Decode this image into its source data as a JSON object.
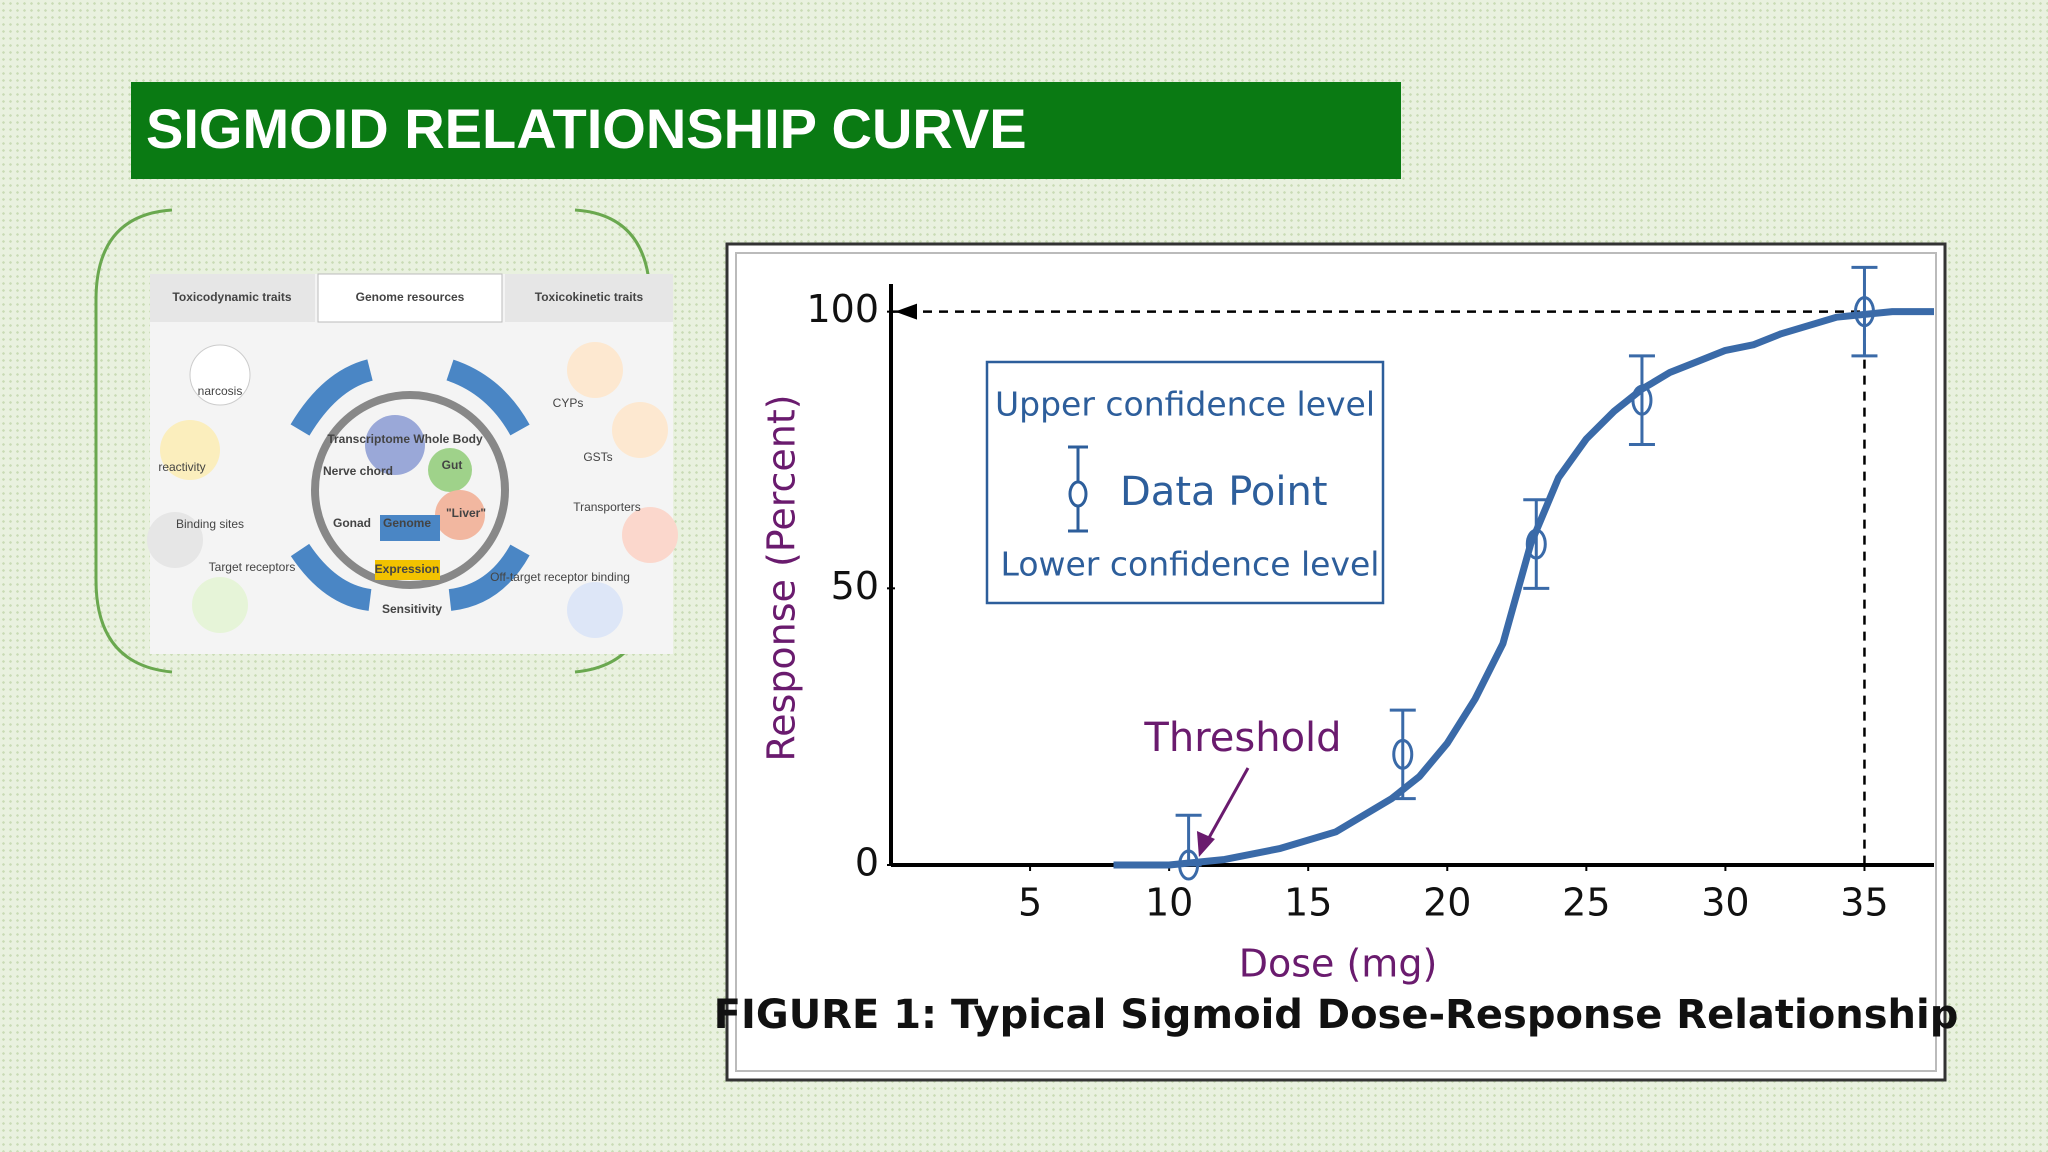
{
  "header": {
    "title": "SIGMOID RELATIONSHIP CURVE"
  },
  "figure": {
    "columns": [
      "Toxicodynamic traits",
      "Genome resources",
      "Toxicokinetic traits"
    ],
    "labels": [
      "narcosis",
      "reactivity",
      "Binding sites",
      "Target receptors",
      "CYPs",
      "GSTs",
      "Transporters",
      "Off-target receptor binding",
      "Transcriptome Whole Body",
      "Nerve chord",
      "Gut",
      "Gonad",
      "Genome",
      "\"Liver\"",
      "Expression",
      "Sensitivity"
    ]
  },
  "chart_data": {
    "type": "line",
    "title": "FIGURE 1: Typical Sigmoid Dose-Response Relationship",
    "x_label": "Dose (mg)",
    "y_label": "Response (Percent)",
    "xlim": [
      0,
      37.5
    ],
    "ylim": [
      0,
      105
    ],
    "xticks": [
      5,
      10,
      15,
      20,
      25,
      30,
      35
    ],
    "yticks": [
      0,
      50,
      100
    ],
    "curve": {
      "color": "#3a6aa8",
      "x": [
        8,
        10,
        12,
        14,
        16,
        18,
        19,
        20,
        21,
        22,
        23,
        24,
        25,
        26,
        27,
        28,
        29,
        30,
        31,
        32,
        34,
        36,
        37.5
      ],
      "values": [
        0,
        0,
        1,
        3,
        6,
        12,
        16,
        22,
        30,
        40,
        58,
        70,
        77,
        82,
        86,
        89,
        91,
        93,
        94,
        96,
        99,
        100,
        100
      ]
    },
    "series": [
      {
        "name": "Data Point",
        "color": "#3a6aa8",
        "x": [
          10.7,
          18.4,
          23.2,
          27,
          35
        ],
        "values": [
          0,
          20,
          58,
          84,
          100
        ],
        "errors": [
          9,
          8,
          8,
          8,
          8
        ]
      }
    ],
    "legend": {
      "upper": "Upper confidence level",
      "lower": "Lower confidence level"
    },
    "guides": {
      "x": 35,
      "y": 100
    },
    "annotation": {
      "text": "Threshold",
      "x": 11,
      "y": 0
    }
  }
}
